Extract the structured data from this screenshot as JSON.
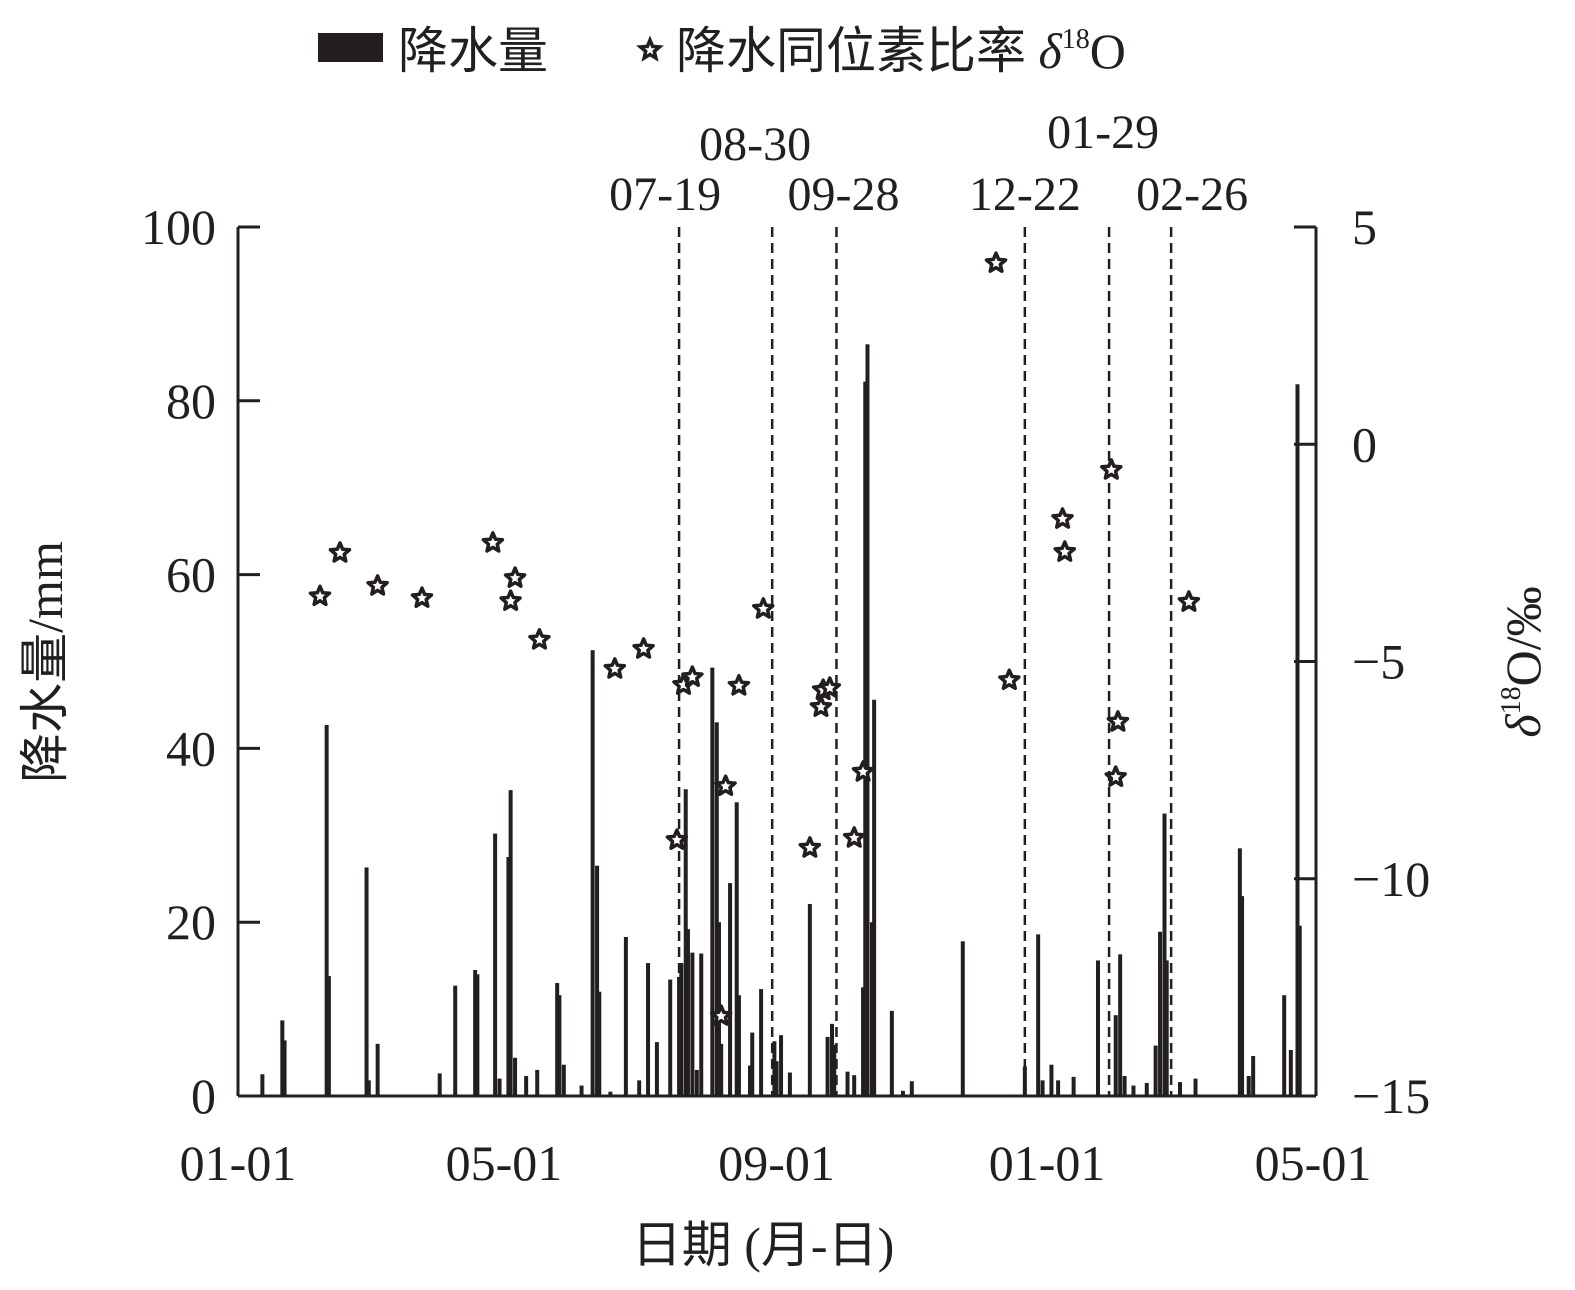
{
  "chart_data": {
    "type": "bar+scatter",
    "xlabel": "日期 (月-日)",
    "ylabel_left": "降水量/mm",
    "ylabel_right": "δ18O/‰",
    "ylabel_right_parts": {
      "delta": "δ",
      "sup": "18",
      "rest": "O/‰"
    },
    "xticks": [
      "01-01",
      "05-01",
      "09-01",
      "01-01",
      "05-01"
    ],
    "yticks_left": [
      "0",
      "20",
      "40",
      "60",
      "80",
      "100"
    ],
    "yticks_right": [
      "5",
      "0",
      "−5",
      "−10",
      "−15"
    ],
    "ylim_left": [
      0,
      100
    ],
    "ylim_right": [
      -15,
      5
    ],
    "xrange": [
      "01-01",
      "05-01 (following year)"
    ],
    "legend": {
      "placement": "top",
      "bar_label": "降水量",
      "star_label": "降水同位素比率 ",
      "star_delta": "δ",
      "star_sup": "18",
      "star_rest": "O"
    },
    "events": [
      {
        "date": "07-19"
      },
      {
        "date": "08-30"
      },
      {
        "date": "09-28"
      },
      {
        "date": "12-22"
      },
      {
        "date": "01-29"
      },
      {
        "date": "02-26"
      }
    ],
    "precipitation": {
      "name": "降水量",
      "color": "#231f20",
      "points": [
        [
          "01-12",
          2.5
        ],
        [
          "01-21",
          8.7
        ],
        [
          "01-22",
          6.4
        ],
        [
          "02-10",
          42.7
        ],
        [
          "02-11",
          13.8
        ],
        [
          "02-28",
          26.3
        ],
        [
          "03-01",
          1.8
        ],
        [
          "03-05",
          6.0
        ],
        [
          "04-02",
          2.6
        ],
        [
          "04-09",
          12.7
        ],
        [
          "04-18",
          14.5
        ],
        [
          "04-19",
          14.0
        ],
        [
          "04-27",
          30.2
        ],
        [
          "04-29",
          2.0
        ],
        [
          "05-03",
          27.5
        ],
        [
          "05-04",
          35.2
        ],
        [
          "05-06",
          4.4
        ],
        [
          "05-11",
          2.3
        ],
        [
          "05-16",
          3.0
        ],
        [
          "05-25",
          13.0
        ],
        [
          "05-26",
          11.6
        ],
        [
          "05-28",
          3.6
        ],
        [
          "06-05",
          1.2
        ],
        [
          "06-10",
          51.3
        ],
        [
          "06-12",
          26.5
        ],
        [
          "06-13",
          12.0
        ],
        [
          "06-18",
          0.5
        ],
        [
          "06-25",
          18.3
        ],
        [
          "07-01",
          1.8
        ],
        [
          "07-05",
          15.3
        ],
        [
          "07-09",
          6.2
        ],
        [
          "07-15",
          13.4
        ],
        [
          "07-19",
          13.7
        ],
        [
          "07-20",
          15.3
        ],
        [
          "07-22",
          35.3
        ],
        [
          "07-23",
          19.2
        ],
        [
          "07-25",
          16.5
        ],
        [
          "07-27",
          3.0
        ],
        [
          "07-29",
          16.4
        ],
        [
          "08-03",
          49.3
        ],
        [
          "08-05",
          43.0
        ],
        [
          "08-06",
          20.0
        ],
        [
          "08-07",
          6.0
        ],
        [
          "08-11",
          24.5
        ],
        [
          "08-14",
          33.8
        ],
        [
          "08-15",
          11.6
        ],
        [
          "08-20",
          3.5
        ],
        [
          "08-21",
          7.3
        ],
        [
          "08-25",
          12.3
        ],
        [
          "08-31",
          6.3
        ],
        [
          "09-01",
          4.0
        ],
        [
          "09-03",
          7.0
        ],
        [
          "09-07",
          2.7
        ],
        [
          "09-16",
          22.1
        ],
        [
          "09-24",
          6.8
        ],
        [
          "09-26",
          8.3
        ],
        [
          "09-27",
          5.9
        ],
        [
          "10-03",
          2.8
        ],
        [
          "10-06",
          2.4
        ],
        [
          "10-10",
          12.5
        ],
        [
          "10-11",
          82.2
        ],
        [
          "10-12",
          86.5
        ],
        [
          "10-14",
          20.0
        ],
        [
          "10-15",
          45.6
        ],
        [
          "10-23",
          9.8
        ],
        [
          "10-28",
          0.6
        ],
        [
          "11-01",
          1.7
        ],
        [
          "11-24",
          17.8
        ],
        [
          "12-22",
          3.4
        ],
        [
          "12-28",
          18.6
        ],
        [
          "12-30",
          1.8
        ],
        [
          "01-03",
          3.6
        ],
        [
          "01-06",
          1.8
        ],
        [
          "01-13",
          2.2
        ],
        [
          "01-24",
          15.6
        ],
        [
          "02-01",
          9.3
        ],
        [
          "02-03",
          16.3
        ],
        [
          "02-05",
          2.3
        ],
        [
          "02-09",
          1.2
        ],
        [
          "02-15",
          1.5
        ],
        [
          "02-19",
          5.8
        ],
        [
          "02-21",
          18.9
        ],
        [
          "02-23",
          32.5
        ],
        [
          "02-24",
          15.6
        ],
        [
          "03-02",
          1.6
        ],
        [
          "03-09",
          2.0
        ],
        [
          "03-29",
          28.5
        ],
        [
          "03-30",
          23.0
        ],
        [
          "04-02",
          2.3
        ],
        [
          "04-04",
          4.6
        ],
        [
          "04-18",
          11.6
        ],
        [
          "04-21",
          5.3
        ],
        [
          "04-24",
          81.9
        ],
        [
          "04-25",
          19.6
        ]
      ]
    },
    "d18O": {
      "name": "降水同位素比率 δ18O",
      "marker": "star",
      "points": [
        [
          "02-07",
          -3.5
        ],
        [
          "02-16",
          -2.5
        ],
        [
          "03-05",
          -3.26
        ],
        [
          "03-25",
          -3.54
        ],
        [
          "04-26",
          -2.27
        ],
        [
          "05-04",
          -3.61
        ],
        [
          "05-06",
          -3.08
        ],
        [
          "05-17",
          -4.5
        ],
        [
          "06-20",
          -5.17
        ],
        [
          "07-03",
          -4.71
        ],
        [
          "07-18",
          -9.11
        ],
        [
          "07-21",
          -5.54
        ],
        [
          "07-25",
          -5.36
        ],
        [
          "08-07",
          -13.16
        ],
        [
          "08-09",
          -7.87
        ],
        [
          "08-15",
          -5.56
        ],
        [
          "08-26",
          -3.79
        ],
        [
          "09-16",
          -9.29
        ],
        [
          "09-21",
          -6.05
        ],
        [
          "09-22",
          -5.66
        ],
        [
          "09-25",
          -5.61
        ],
        [
          "10-06",
          -9.06
        ],
        [
          "10-10",
          -7.54
        ],
        [
          "12-09",
          4.17
        ],
        [
          "12-15",
          -5.43
        ],
        [
          "01-08",
          -1.72
        ],
        [
          "01-09",
          -2.48
        ],
        [
          "01-30",
          -0.59
        ],
        [
          "02-01",
          -7.66
        ],
        [
          "02-02",
          -6.39
        ],
        [
          "03-06",
          -3.63
        ]
      ]
    }
  }
}
